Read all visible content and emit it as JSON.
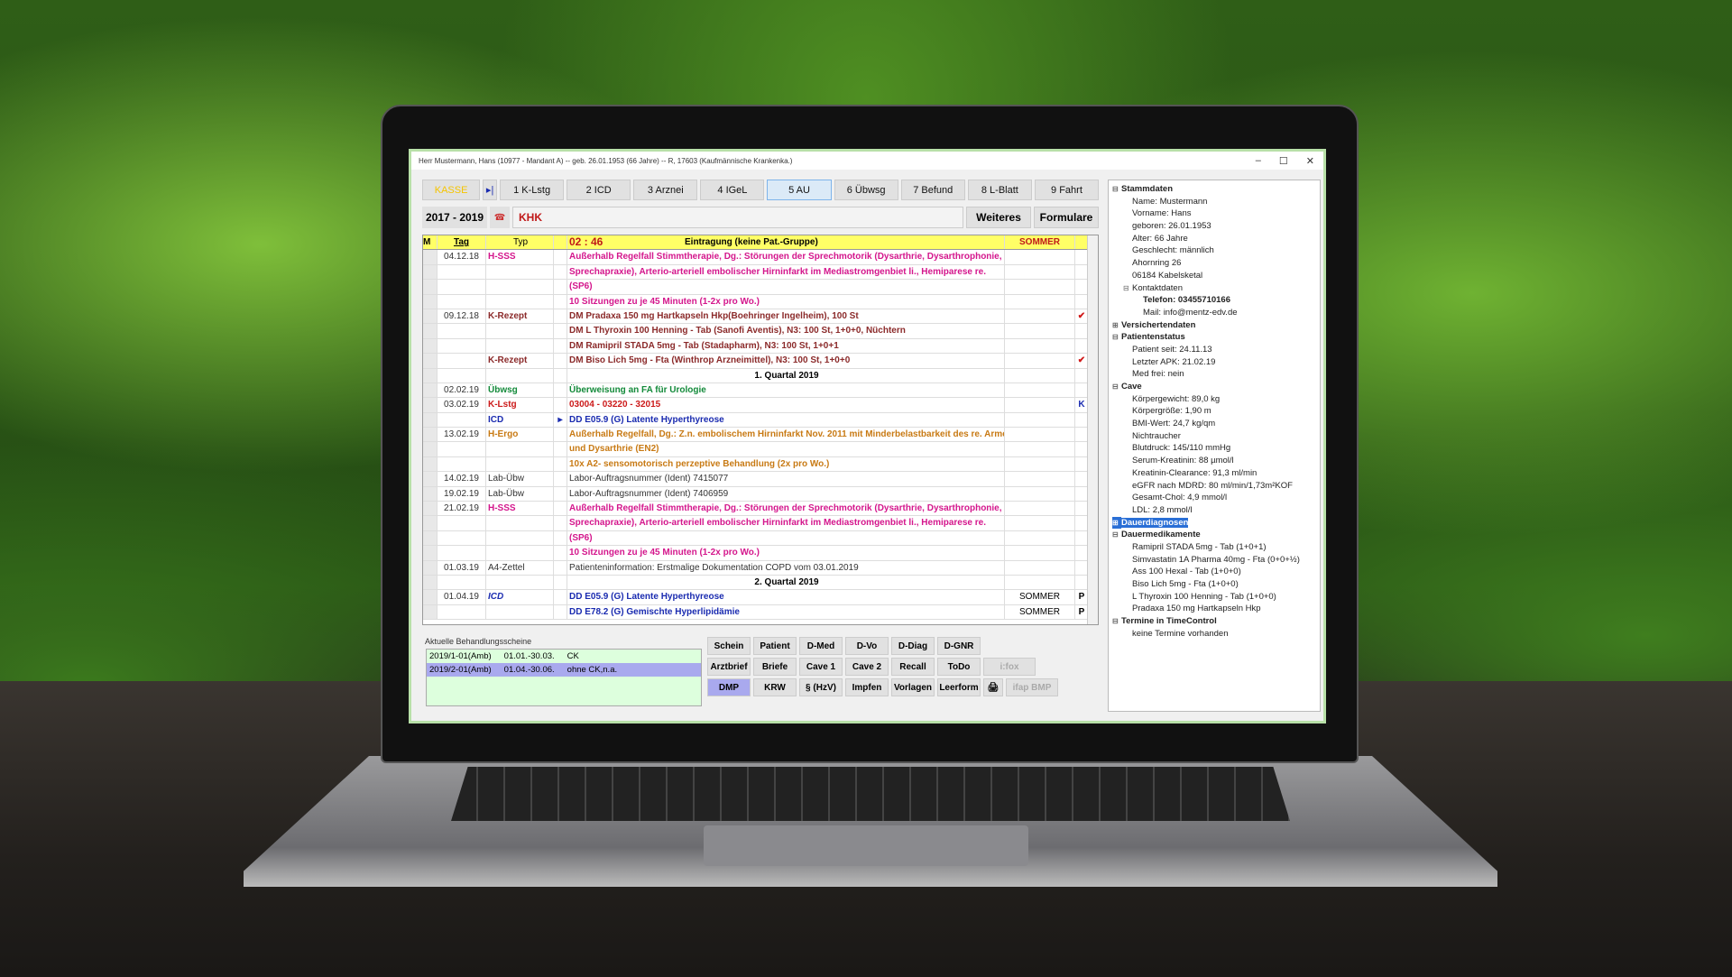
{
  "window": {
    "title": "Herr Mustermann, Hans (10977 - Mandant A) -- geb. 26.01.1953 (66 Jahre) -- R, 17603 (Kaufmännische Krankenka.)",
    "controls": [
      "–",
      "☐",
      "✕"
    ]
  },
  "tabs": [
    {
      "label": "KASSE",
      "kind": "kasse"
    },
    {
      "label": "▸|",
      "kind": "arrow"
    },
    {
      "label": "1 K-Lstg"
    },
    {
      "label": "2 ICD"
    },
    {
      "label": "3 Arznei"
    },
    {
      "label": "4 IGeL"
    },
    {
      "label": "5 AU",
      "active": true
    },
    {
      "label": "6 Übwsg"
    },
    {
      "label": "7 Befund"
    },
    {
      "label": "8 L-Blatt"
    },
    {
      "label": "9 Fahrt"
    }
  ],
  "toolbar": {
    "years": "2017 - 2019",
    "icon": "phone-icon",
    "group": "KHK",
    "weiteres": "Weiteres",
    "formulare": "Formulare"
  },
  "grid": {
    "header": {
      "m": "M",
      "tag": "Tag",
      "typ": "Typ",
      "time": "02 : 46",
      "entry": "Eintragung (keine Pat.-Gruppe)",
      "sommer": "SOMMER"
    },
    "rows": [
      {
        "tag": "04.12.18",
        "typ": "H-SSS",
        "color": "#d4168c",
        "text": "Außerhalb Regelfall Stimmtherapie, Dg.: Störungen der Sprechmotorik (Dysarthrie, Dysarthrophonie,"
      },
      {
        "color": "#d4168c",
        "text": "Sprechapraxie), Arterio-arteriell embolischer Hirninfarkt im Mediastromgenbiet li., Hemiparese re."
      },
      {
        "color": "#d4168c",
        "text": "(SP6)"
      },
      {
        "color": "#d4168c",
        "text": "10 Sitzungen zu je 45 Minuten (1-2x pro Wo.)"
      },
      {
        "tag": "09.12.18",
        "typ": "K-Rezept",
        "color": "#8b2a2a",
        "text": "DM Pradaxa 150 mg Hartkapseln Hkp(Boehringer Ingelheim), 100 St",
        "chk": "✔"
      },
      {
        "color": "#8b2a2a",
        "text": "DM L Thyroxin 100 Henning - Tab (Sanofi Aventis), N3: 100 St, 1+0+0, Nüchtern"
      },
      {
        "color": "#8b2a2a",
        "text": "DM Ramipril STADA 5mg - Tab (Stadapharm), N3: 100 St, 1+0+1"
      },
      {
        "typ": "K-Rezept",
        "color": "#8b2a2a",
        "text": "DM Biso Lich 5mg - Fta (Winthrop Arzneimittel), N3: 100 St, 1+0+0",
        "chk": "✔"
      },
      {
        "quarter": "1. Quartal 2019"
      },
      {
        "tag": "02.02.19",
        "typ": "Übwsg",
        "color": "#138a3a",
        "text": "Überweisung an FA für Urologie"
      },
      {
        "tag": "03.02.19",
        "typ": "K-Lstg",
        "color": "#cc1a1a",
        "text": "03004 - 03220 - 32015",
        "chk": "K"
      },
      {
        "typ": "ICD",
        "color": "#1a2bb0",
        "text": "DD E05.9 (G)  Latente Hyperthyreose",
        "arrow": "▸"
      },
      {
        "tag": "13.02.19",
        "typ": "H-Ergo",
        "color": "#c87a14",
        "text": "Außerhalb Regelfall, Dg.: Z.n. embolischem Hirninfarkt Nov. 2011 mit Minderbelastbarkeit des re. Armes"
      },
      {
        "color": "#c87a14",
        "text": "und Dysarthrie (EN2)"
      },
      {
        "color": "#c87a14",
        "text": "10x A2- sensomotorisch perzeptive Behandlung (2x pro Wo.)"
      },
      {
        "tag": "14.02.19",
        "typ": "Lab-Übw",
        "color": "#333333",
        "normal": true,
        "text": "Labor-Auftragsnummer (Ident) 7415077"
      },
      {
        "tag": "19.02.19",
        "typ": "Lab-Übw",
        "color": "#333333",
        "normal": true,
        "text": "Labor-Auftragsnummer (Ident) 7406959"
      },
      {
        "tag": "21.02.19",
        "typ": "H-SSS",
        "color": "#d4168c",
        "text": "Außerhalb Regelfall Stimmtherapie, Dg.: Störungen der Sprechmotorik (Dysarthrie, Dysarthrophonie,"
      },
      {
        "color": "#d4168c",
        "text": "Sprechapraxie), Arterio-arteriell embolischer Hirninfarkt im Mediastromgenbiet li., Hemiparese re."
      },
      {
        "color": "#d4168c",
        "text": "(SP6)"
      },
      {
        "color": "#d4168c",
        "text": "10 Sitzungen zu je 45 Minuten (1-2x pro Wo.)"
      },
      {
        "tag": "01.03.19",
        "typ": "A4-Zettel",
        "color": "#333333",
        "normal": true,
        "text": "Patienteninformation: Erstmalige Dokumentation COPD vom 03.01.2019"
      },
      {
        "quarter": "2. Quartal 2019"
      },
      {
        "tag": "01.04.19",
        "typ": "ICD",
        "italic": true,
        "color": "#1a2bb0",
        "text": "DD E05.9 (G)  Latente Hyperthyreose",
        "sommer": "SOMMER",
        "chk": "P"
      },
      {
        "color": "#1a2bb0",
        "text": "DD E78.2 (G)  Gemischte Hyperlipidämie",
        "sommer": "SOMMER",
        "chk": "P"
      }
    ]
  },
  "scheine": {
    "label": "Aktuelle Behandlungsscheine",
    "items": [
      {
        "id": "2019/1-01(Amb)",
        "range": "01.01.-30.03.",
        "note": "CK"
      },
      {
        "id": "2019/2-01(Amb)",
        "range": "01.04.-30.06.",
        "note": "ohne CK,n.a.",
        "selected": true
      }
    ]
  },
  "buttons": [
    [
      "Schein",
      "Patient",
      "D-Med",
      "D-Vo",
      "D-Diag",
      "D-GNR"
    ],
    [
      "Arztbrief",
      "Briefe",
      "Cave 1",
      "Cave 2",
      "Recall",
      "ToDo",
      "i:fox"
    ],
    [
      "DMP",
      "KRW",
      "§ (HzV)",
      "Impfen",
      "Vorlagen",
      "Leerform",
      "🖨",
      "ifap BMP"
    ]
  ],
  "tree": [
    {
      "t": "Stammdaten",
      "l": 0,
      "b": true,
      "e": "⊟"
    },
    {
      "t": "Name: Mustermann",
      "l": 1
    },
    {
      "t": "Vorname: Hans",
      "l": 1
    },
    {
      "t": "geboren: 26.01.1953",
      "l": 1
    },
    {
      "t": "Alter: 66 Jahre",
      "l": 1
    },
    {
      "t": "Geschlecht: männlich",
      "l": 1
    },
    {
      "t": "Ahornring 26",
      "l": 1
    },
    {
      "t": "06184 Kabelsketal",
      "l": 1
    },
    {
      "t": "Kontaktdaten",
      "l": 1,
      "e": "⊟"
    },
    {
      "t": "Telefon: 03455710166",
      "l": 2,
      "b": true
    },
    {
      "t": "Mail: info@mentz-edv.de",
      "l": 2
    },
    {
      "t": "Versichertendaten",
      "l": 0,
      "b": true,
      "e": "⊞"
    },
    {
      "t": "Patientenstatus",
      "l": 0,
      "b": true,
      "e": "⊟"
    },
    {
      "t": "Patient seit: 24.11.13",
      "l": 1
    },
    {
      "t": "Letzter APK: 21.02.19",
      "l": 1
    },
    {
      "t": "Med frei: nein",
      "l": 1
    },
    {
      "t": "Cave",
      "l": 0,
      "b": true,
      "e": "⊟"
    },
    {
      "t": "Körpergewicht: 89,0 kg",
      "l": 1
    },
    {
      "t": "Körpergröße: 1,90 m",
      "l": 1
    },
    {
      "t": "BMI-Wert: 24,7 kg/qm",
      "l": 1
    },
    {
      "t": "Nichtraucher",
      "l": 1
    },
    {
      "t": "Blutdruck: 145/110 mmHg",
      "l": 1
    },
    {
      "t": "Serum-Kreatinin: 88 µmol/l",
      "l": 1
    },
    {
      "t": "Kreatinin-Clearance: 91,3 ml/min",
      "l": 1
    },
    {
      "t": "eGFR nach MDRD: 80 ml/min/1,73m²KOF",
      "l": 1
    },
    {
      "t": "Gesamt-Chol: 4,9 mmol/l",
      "l": 1
    },
    {
      "t": "LDL: 2,8 mmol/l",
      "l": 1
    },
    {
      "t": "Dauerdiagnosen",
      "l": 0,
      "b": true,
      "e": "⊞",
      "sel": true
    },
    {
      "t": "Dauermedikamente",
      "l": 0,
      "b": true,
      "e": "⊟"
    },
    {
      "t": "Ramipril STADA 5mg - Tab (1+0+1)",
      "l": 1
    },
    {
      "t": "Simvastatin 1A Pharma 40mg - Fta (0+0+½)",
      "l": 1
    },
    {
      "t": "Ass 100 Hexal - Tab (1+0+0)",
      "l": 1
    },
    {
      "t": "Biso Lich 5mg - Fta (1+0+0)",
      "l": 1
    },
    {
      "t": "L Thyroxin 100 Henning - Tab (1+0+0)",
      "l": 1
    },
    {
      "t": "Pradaxa 150 mg Hartkapseln Hkp",
      "l": 1
    },
    {
      "t": "Termine in TimeControl",
      "l": 0,
      "b": true,
      "e": "⊟"
    },
    {
      "t": "keine Termine vorhanden",
      "l": 1
    }
  ]
}
